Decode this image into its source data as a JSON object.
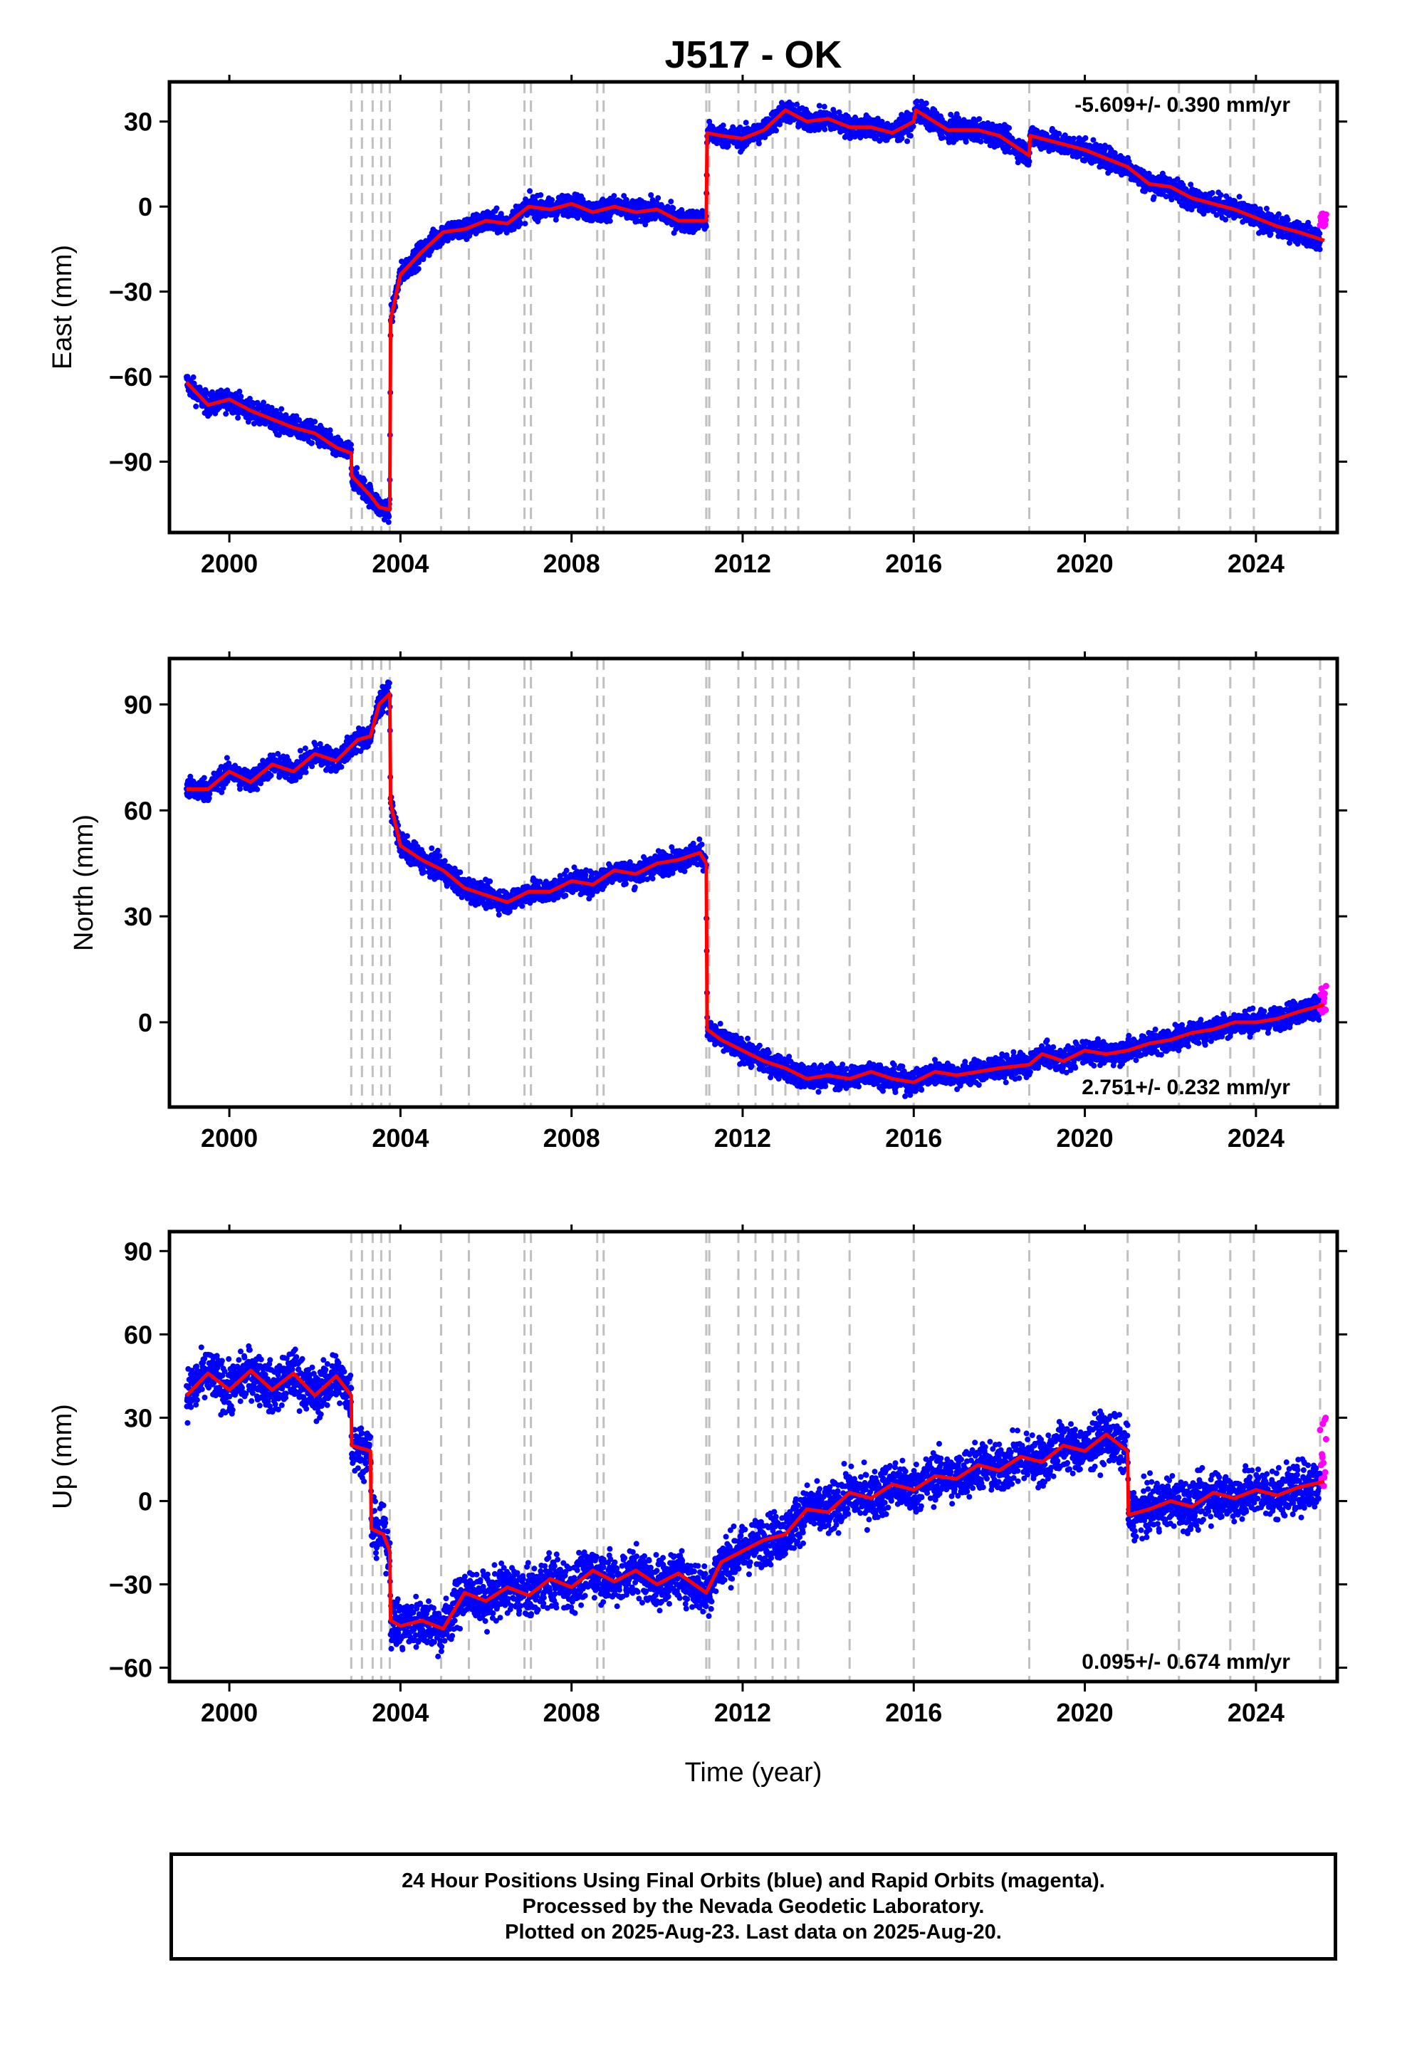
{
  "title": "J517 - OK",
  "xlabel": "Time (year)",
  "footer": {
    "line1": "24 Hour Positions Using Final Orbits (blue) and Rapid Orbits (magenta).",
    "line2": "Processed by the Nevada Geodetic Laboratory.",
    "line3": "Plotted on 2025-Aug-23. Last data on 2025-Aug-20."
  },
  "colors": {
    "final": "#0000ff",
    "rapid": "#ff00ff",
    "model": "#ff0000",
    "steps": "#c0c0c0"
  },
  "chart_data": [
    {
      "type": "scatter",
      "ylabel": "East (mm)",
      "rate": "-5.609+/- 0.390 mm/yr",
      "rate_position": "top-right",
      "xlim": [
        1998.6,
        2025.9
      ],
      "ylim": [
        -115,
        44
      ],
      "xticks": [
        2000,
        2004,
        2008,
        2012,
        2016,
        2020,
        2024
      ],
      "yticks": [
        30,
        0,
        -30,
        -60,
        -90
      ],
      "model": [
        [
          1999.0,
          -62
        ],
        [
          1999.5,
          -70
        ],
        [
          2000.0,
          -68
        ],
        [
          2000.5,
          -72
        ],
        [
          2001.0,
          -75
        ],
        [
          2001.5,
          -78
        ],
        [
          2002.0,
          -80
        ],
        [
          2002.5,
          -85
        ],
        [
          2002.85,
          -87
        ],
        [
          2002.86,
          -95
        ],
        [
          2003.3,
          -102
        ],
        [
          2003.5,
          -106
        ],
        [
          2003.75,
          -107
        ],
        [
          2003.77,
          -40
        ],
        [
          2004.0,
          -24
        ],
        [
          2004.5,
          -16
        ],
        [
          2005.0,
          -9
        ],
        [
          2005.5,
          -8
        ],
        [
          2006.0,
          -5
        ],
        [
          2006.5,
          -6
        ],
        [
          2007.0,
          0
        ],
        [
          2007.5,
          -1
        ],
        [
          2008.0,
          1
        ],
        [
          2008.5,
          -2
        ],
        [
          2009.0,
          0
        ],
        [
          2009.5,
          -2
        ],
        [
          2010.0,
          -1
        ],
        [
          2010.5,
          -5
        ],
        [
          2011.15,
          -5
        ],
        [
          2011.17,
          26
        ],
        [
          2011.5,
          25
        ],
        [
          2012.0,
          24
        ],
        [
          2012.5,
          27
        ],
        [
          2013.0,
          34
        ],
        [
          2013.5,
          30
        ],
        [
          2014.0,
          31
        ],
        [
          2014.5,
          28
        ],
        [
          2015.0,
          28
        ],
        [
          2015.5,
          26
        ],
        [
          2016.0,
          30
        ],
        [
          2016.05,
          34
        ],
        [
          2016.8,
          27
        ],
        [
          2017.5,
          27
        ],
        [
          2018.0,
          25
        ],
        [
          2018.7,
          18
        ],
        [
          2018.72,
          25
        ],
        [
          2019.5,
          22
        ],
        [
          2020.0,
          20
        ],
        [
          2020.5,
          17
        ],
        [
          2021.0,
          14
        ],
        [
          2021.5,
          8
        ],
        [
          2022.0,
          7
        ],
        [
          2022.5,
          3
        ],
        [
          2023.0,
          1
        ],
        [
          2023.5,
          -1
        ],
        [
          2024.0,
          -4
        ],
        [
          2024.5,
          -7
        ],
        [
          2025.0,
          -9
        ],
        [
          2025.6,
          -12
        ]
      ],
      "scatter_fuzz": 3.5,
      "rapid": {
        "x": [
          2025.5,
          2025.64
        ],
        "y": [
          -8,
          -2
        ]
      }
    },
    {
      "type": "scatter",
      "ylabel": "North (mm)",
      "rate": "2.751+/- 0.232 mm/yr",
      "rate_position": "bottom-right",
      "xlim": [
        1998.6,
        2025.9
      ],
      "ylim": [
        -24,
        103
      ],
      "xticks": [
        2000,
        2004,
        2008,
        2012,
        2016,
        2020,
        2024
      ],
      "yticks": [
        90,
        60,
        30,
        0
      ],
      "model": [
        [
          1999.0,
          66
        ],
        [
          1999.5,
          66
        ],
        [
          2000.0,
          71
        ],
        [
          2000.5,
          68
        ],
        [
          2001.0,
          73
        ],
        [
          2001.5,
          71
        ],
        [
          2002.0,
          76
        ],
        [
          2002.5,
          74
        ],
        [
          2003.0,
          80
        ],
        [
          2003.3,
          81
        ],
        [
          2003.5,
          90
        ],
        [
          2003.75,
          93
        ],
        [
          2003.77,
          62
        ],
        [
          2004.0,
          50
        ],
        [
          2004.5,
          46
        ],
        [
          2005.0,
          43
        ],
        [
          2005.5,
          38
        ],
        [
          2006.0,
          36
        ],
        [
          2006.5,
          34
        ],
        [
          2007.0,
          37
        ],
        [
          2007.5,
          37
        ],
        [
          2008.0,
          40
        ],
        [
          2008.5,
          39
        ],
        [
          2009.0,
          43
        ],
        [
          2009.5,
          42
        ],
        [
          2010.0,
          45
        ],
        [
          2010.5,
          46
        ],
        [
          2011.0,
          48
        ],
        [
          2011.15,
          45
        ],
        [
          2011.17,
          -2
        ],
        [
          2011.5,
          -5
        ],
        [
          2012.0,
          -8
        ],
        [
          2012.5,
          -11
        ],
        [
          2013.0,
          -13
        ],
        [
          2013.5,
          -16
        ],
        [
          2014.0,
          -15
        ],
        [
          2014.5,
          -16
        ],
        [
          2015.0,
          -14
        ],
        [
          2015.5,
          -16
        ],
        [
          2016.0,
          -17
        ],
        [
          2016.5,
          -14
        ],
        [
          2017.0,
          -15
        ],
        [
          2017.5,
          -14
        ],
        [
          2018.0,
          -13
        ],
        [
          2018.7,
          -12
        ],
        [
          2019.0,
          -9
        ],
        [
          2019.5,
          -11
        ],
        [
          2020.0,
          -8
        ],
        [
          2020.5,
          -9
        ],
        [
          2021.0,
          -8
        ],
        [
          2021.5,
          -6
        ],
        [
          2022.0,
          -5
        ],
        [
          2022.5,
          -3
        ],
        [
          2023.0,
          -2
        ],
        [
          2023.5,
          0
        ],
        [
          2024.0,
          0
        ],
        [
          2024.5,
          1
        ],
        [
          2025.0,
          3
        ],
        [
          2025.6,
          5
        ]
      ],
      "scatter_fuzz": 3.0,
      "rapid": {
        "x": [
          2025.5,
          2025.64
        ],
        "y": [
          2,
          12
        ]
      }
    },
    {
      "type": "scatter",
      "ylabel": "Up (mm)",
      "rate": "0.095+/- 0.674 mm/yr",
      "rate_position": "bottom-right",
      "xlim": [
        1998.6,
        2025.9
      ],
      "ylim": [
        -65,
        97
      ],
      "xticks": [
        2000,
        2004,
        2008,
        2012,
        2016,
        2020,
        2024
      ],
      "yticks": [
        90,
        60,
        30,
        0,
        -30,
        -60
      ],
      "model": [
        [
          1999.0,
          38
        ],
        [
          1999.5,
          46
        ],
        [
          2000.0,
          40
        ],
        [
          2000.5,
          47
        ],
        [
          2001.0,
          40
        ],
        [
          2001.5,
          46
        ],
        [
          2002.0,
          38
        ],
        [
          2002.5,
          45
        ],
        [
          2002.85,
          38
        ],
        [
          2002.86,
          20
        ],
        [
          2003.3,
          18
        ],
        [
          2003.32,
          -10
        ],
        [
          2003.6,
          -12
        ],
        [
          2003.75,
          -18
        ],
        [
          2003.77,
          -43
        ],
        [
          2004.0,
          -45
        ],
        [
          2004.5,
          -43
        ],
        [
          2005.0,
          -46
        ],
        [
          2005.5,
          -33
        ],
        [
          2006.0,
          -36
        ],
        [
          2006.5,
          -31
        ],
        [
          2007.0,
          -34
        ],
        [
          2007.5,
          -28
        ],
        [
          2008.0,
          -31
        ],
        [
          2008.5,
          -25
        ],
        [
          2009.0,
          -29
        ],
        [
          2009.5,
          -25
        ],
        [
          2010.0,
          -30
        ],
        [
          2010.5,
          -26
        ],
        [
          2011.15,
          -33
        ],
        [
          2011.5,
          -22
        ],
        [
          2012.0,
          -18
        ],
        [
          2012.5,
          -14
        ],
        [
          2013.0,
          -12
        ],
        [
          2013.5,
          -3
        ],
        [
          2014.0,
          -4
        ],
        [
          2014.5,
          3
        ],
        [
          2015.0,
          1
        ],
        [
          2015.5,
          6
        ],
        [
          2016.0,
          4
        ],
        [
          2016.5,
          9
        ],
        [
          2017.0,
          8
        ],
        [
          2017.5,
          13
        ],
        [
          2018.0,
          11
        ],
        [
          2018.5,
          16
        ],
        [
          2019.0,
          14
        ],
        [
          2019.5,
          20
        ],
        [
          2020.0,
          18
        ],
        [
          2020.5,
          24
        ],
        [
          2021.0,
          18
        ],
        [
          2021.02,
          -5
        ],
        [
          2021.5,
          -3
        ],
        [
          2022.0,
          0
        ],
        [
          2022.5,
          -2
        ],
        [
          2023.0,
          3
        ],
        [
          2023.5,
          1
        ],
        [
          2024.0,
          4
        ],
        [
          2024.5,
          2
        ],
        [
          2025.0,
          5
        ],
        [
          2025.6,
          7
        ]
      ],
      "scatter_fuzz": 8.0,
      "rapid": {
        "x": [
          2025.5,
          2025.64
        ],
        "y": [
          5,
          30
        ]
      }
    }
  ],
  "step_dates": [
    2002.85,
    2003.1,
    2003.35,
    2003.55,
    2003.75,
    2004.95,
    2005.6,
    2006.9,
    2007.05,
    2008.6,
    2008.75,
    2011.15,
    2011.22,
    2011.9,
    2012.3,
    2012.7,
    2013.0,
    2013.3,
    2014.5,
    2016.0,
    2018.7,
    2021.0,
    2022.2,
    2023.4,
    2023.95,
    2025.5
  ]
}
